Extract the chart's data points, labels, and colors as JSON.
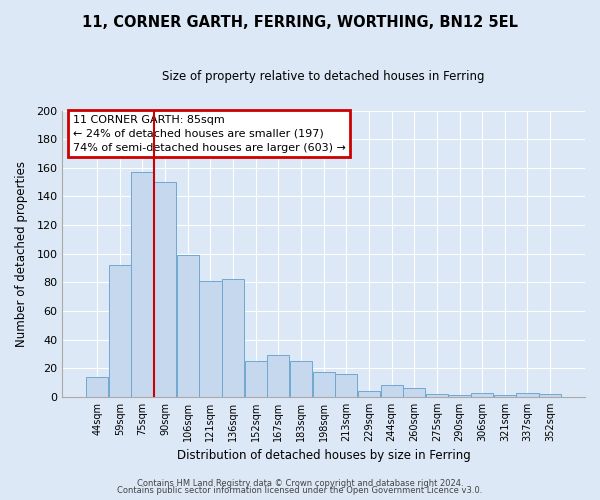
{
  "title": "11, CORNER GARTH, FERRING, WORTHING, BN12 5EL",
  "subtitle": "Size of property relative to detached houses in Ferring",
  "xlabel": "Distribution of detached houses by size in Ferring",
  "ylabel": "Number of detached properties",
  "categories": [
    "44sqm",
    "59sqm",
    "75sqm",
    "90sqm",
    "106sqm",
    "121sqm",
    "136sqm",
    "152sqm",
    "167sqm",
    "183sqm",
    "198sqm",
    "213sqm",
    "229sqm",
    "244sqm",
    "260sqm",
    "275sqm",
    "290sqm",
    "306sqm",
    "321sqm",
    "337sqm",
    "352sqm"
  ],
  "values": [
    14,
    92,
    157,
    150,
    99,
    81,
    82,
    25,
    29,
    25,
    17,
    16,
    4,
    8,
    6,
    2,
    1,
    3,
    1,
    3,
    2
  ],
  "bar_color": "#c5d8ee",
  "bar_edge_color": "#6fa8d0",
  "bg_color": "#dce8f5",
  "plot_bg_color": "#dce8f5",
  "fig_bg_color": "#dce8f5",
  "grid_color": "#ffffff",
  "vline_position": 2.5,
  "vline_color": "#cc0000",
  "annotation_title": "11 CORNER GARTH: 85sqm",
  "annotation_line1": "← 24% of detached houses are smaller (197)",
  "annotation_line2": "74% of semi-detached houses are larger (603) →",
  "annotation_box_color": "#cc0000",
  "ylim": [
    0,
    200
  ],
  "yticks": [
    0,
    20,
    40,
    60,
    80,
    100,
    120,
    140,
    160,
    180,
    200
  ],
  "footer1": "Contains HM Land Registry data © Crown copyright and database right 2024.",
  "footer2": "Contains public sector information licensed under the Open Government Licence v3.0."
}
